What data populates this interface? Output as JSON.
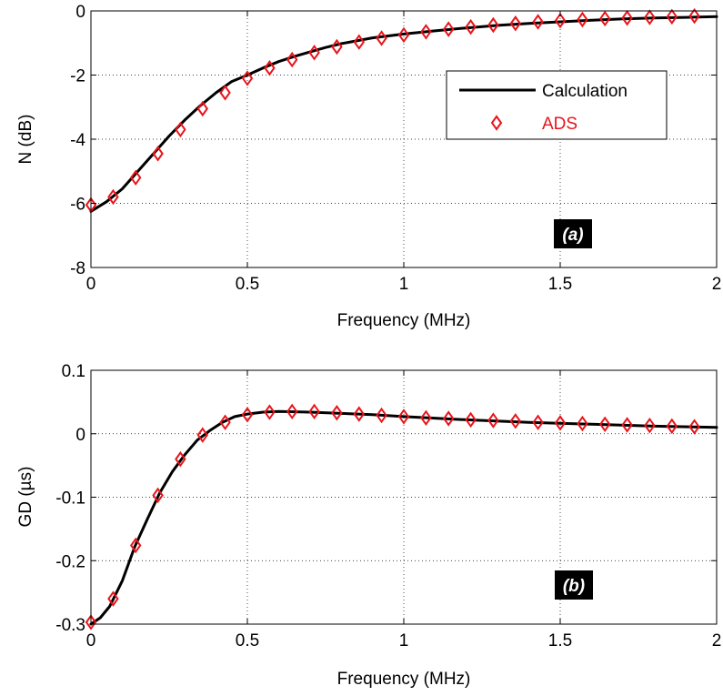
{
  "chart_data": [
    {
      "type": "line",
      "panel_label": "(a)",
      "xlabel": "Frequency (MHz)",
      "ylabel": "N (dB)",
      "xlim": [
        0,
        2
      ],
      "ylim": [
        -8,
        0
      ],
      "xticks": [
        0,
        0.5,
        1,
        1.5,
        2
      ],
      "yticks": [
        -8,
        -6,
        -4,
        -2,
        0
      ],
      "xtick_labels": [
        "0",
        "0.5",
        "1",
        "1.5",
        "2"
      ],
      "ytick_labels": [
        "-8",
        "-6",
        "-4",
        "-2",
        "0"
      ],
      "grid": true,
      "legend": {
        "placement": "upper-right",
        "entries": [
          {
            "label": "Calculation",
            "style": "line",
            "color": "#000000"
          },
          {
            "label": "ADS",
            "style": "diamond",
            "color": "#e8141b"
          }
        ]
      },
      "series": [
        {
          "name": "Calculation",
          "style": "line",
          "color": "#000000",
          "x": [
            0,
            0.05,
            0.1,
            0.15,
            0.2,
            0.25,
            0.3,
            0.35,
            0.4,
            0.45,
            0.5,
            0.55,
            0.6,
            0.65,
            0.7,
            0.75,
            0.8,
            0.9,
            1.0,
            1.1,
            1.2,
            1.3,
            1.4,
            1.5,
            1.6,
            1.7,
            1.8,
            1.9,
            2.0
          ],
          "y": [
            -6.25,
            -5.95,
            -5.55,
            -5.0,
            -4.45,
            -3.9,
            -3.4,
            -2.95,
            -2.55,
            -2.2,
            -2.0,
            -1.78,
            -1.58,
            -1.42,
            -1.28,
            -1.14,
            -1.02,
            -0.84,
            -0.72,
            -0.62,
            -0.53,
            -0.45,
            -0.39,
            -0.34,
            -0.29,
            -0.25,
            -0.22,
            -0.2,
            -0.18
          ]
        },
        {
          "name": "ADS",
          "style": "diamond",
          "color": "#e8141b",
          "x": [
            0,
            0.071,
            0.143,
            0.214,
            0.286,
            0.357,
            0.429,
            0.5,
            0.571,
            0.643,
            0.714,
            0.786,
            0.857,
            0.929,
            1.0,
            1.071,
            1.143,
            1.214,
            1.286,
            1.357,
            1.429,
            1.5,
            1.571,
            1.643,
            1.714,
            1.786,
            1.857,
            1.929
          ],
          "y": [
            -6.05,
            -5.8,
            -5.2,
            -4.45,
            -3.7,
            -3.05,
            -2.55,
            -2.1,
            -1.78,
            -1.52,
            -1.3,
            -1.12,
            -0.97,
            -0.85,
            -0.75,
            -0.65,
            -0.57,
            -0.5,
            -0.44,
            -0.39,
            -0.34,
            -0.3,
            -0.27,
            -0.24,
            -0.22,
            -0.2,
            -0.18,
            -0.16
          ]
        }
      ]
    },
    {
      "type": "line",
      "panel_label": "(b)",
      "xlabel": "Frequency (MHz)",
      "ylabel": "GD (µs)",
      "xlim": [
        0,
        2
      ],
      "ylim": [
        -0.3,
        0.1
      ],
      "xticks": [
        0,
        0.5,
        1,
        1.5,
        2
      ],
      "yticks": [
        -0.3,
        -0.2,
        -0.1,
        0,
        0.1
      ],
      "xtick_labels": [
        "0",
        "0.5",
        "1",
        "1.5",
        "2"
      ],
      "ytick_labels": [
        "-0.3",
        "-0.2",
        "-0.1",
        "0",
        "0.1"
      ],
      "grid": true,
      "series": [
        {
          "name": "Calculation",
          "style": "line",
          "color": "#000000",
          "x": [
            0,
            0.03,
            0.06,
            0.1,
            0.14,
            0.18,
            0.22,
            0.26,
            0.3,
            0.34,
            0.38,
            0.42,
            0.46,
            0.5,
            0.55,
            0.6,
            0.7,
            0.8,
            0.9,
            1.0,
            1.2,
            1.4,
            1.6,
            1.8,
            2.0
          ],
          "y": [
            -0.3,
            -0.29,
            -0.272,
            -0.232,
            -0.178,
            -0.135,
            -0.093,
            -0.06,
            -0.033,
            -0.01,
            0.005,
            0.018,
            0.027,
            0.031,
            0.034,
            0.035,
            0.034,
            0.032,
            0.03,
            0.027,
            0.022,
            0.018,
            0.015,
            0.012,
            0.01
          ]
        },
        {
          "name": "ADS",
          "style": "diamond",
          "color": "#e8141b",
          "x": [
            0,
            0.071,
            0.143,
            0.214,
            0.286,
            0.357,
            0.429,
            0.5,
            0.571,
            0.643,
            0.714,
            0.786,
            0.857,
            0.929,
            1.0,
            1.071,
            1.143,
            1.214,
            1.286,
            1.357,
            1.429,
            1.5,
            1.571,
            1.643,
            1.714,
            1.786,
            1.857,
            1.929
          ],
          "y": [
            -0.297,
            -0.26,
            -0.176,
            -0.097,
            -0.04,
            -0.002,
            0.018,
            0.03,
            0.034,
            0.035,
            0.035,
            0.033,
            0.031,
            0.029,
            0.027,
            0.025,
            0.024,
            0.022,
            0.021,
            0.02,
            0.018,
            0.017,
            0.016,
            0.015,
            0.014,
            0.013,
            0.012,
            0.011
          ]
        }
      ]
    }
  ]
}
